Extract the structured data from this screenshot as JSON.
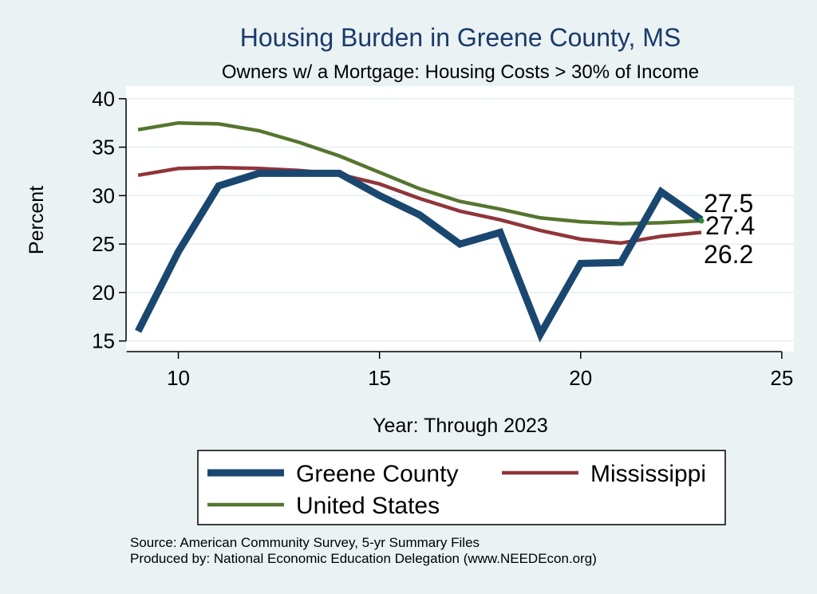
{
  "chart_data": {
    "type": "line",
    "title": "Housing Burden in Greene County, MS",
    "subtitle": "Owners w/ a Mortgage: Housing Costs > 30% of Income",
    "xlabel": "Year: Through 2023",
    "ylabel": "Percent",
    "xlim": [
      8.7,
      25.3
    ],
    "ylim": [
      13.9,
      41.3
    ],
    "xticks": [
      10,
      15,
      20,
      25
    ],
    "yticks": [
      15,
      20,
      25,
      30,
      35,
      40
    ],
    "grid": true,
    "legend_position": "bottom",
    "series": [
      {
        "name": "Greene County",
        "color": "#1a476f",
        "x": [
          9,
          10,
          11,
          12,
          13,
          14,
          15,
          16,
          17,
          18,
          19,
          20,
          21,
          22,
          23
        ],
        "values": [
          16.0,
          24.2,
          31.0,
          32.3,
          32.3,
          32.3,
          30.0,
          28.0,
          25.0,
          26.2,
          15.7,
          23.0,
          23.1,
          30.4,
          27.5
        ],
        "end_label": "27.5"
      },
      {
        "name": "Mississippi",
        "color": "#90353b",
        "x": [
          9,
          10,
          11,
          12,
          13,
          14,
          15,
          16,
          17,
          18,
          19,
          20,
          21,
          22,
          23
        ],
        "values": [
          32.1,
          32.8,
          32.9,
          32.8,
          32.6,
          32.2,
          31.2,
          29.7,
          28.4,
          27.5,
          26.4,
          25.5,
          25.1,
          25.8,
          26.2
        ],
        "end_label": "26.2"
      },
      {
        "name": "United States",
        "color": "#55752f",
        "x": [
          9,
          10,
          11,
          12,
          13,
          14,
          15,
          16,
          17,
          18,
          19,
          20,
          21,
          22,
          23
        ],
        "values": [
          36.8,
          37.5,
          37.4,
          36.7,
          35.5,
          34.1,
          32.4,
          30.7,
          29.4,
          28.6,
          27.7,
          27.3,
          27.1,
          27.2,
          27.4
        ],
        "end_label": "27.4"
      }
    ],
    "source_note": "Source: American Community Survey, 5-yr Summary Files",
    "producer_note": "Produced by: National Economic Education Delegation (www.NEEDEcon.org)"
  }
}
